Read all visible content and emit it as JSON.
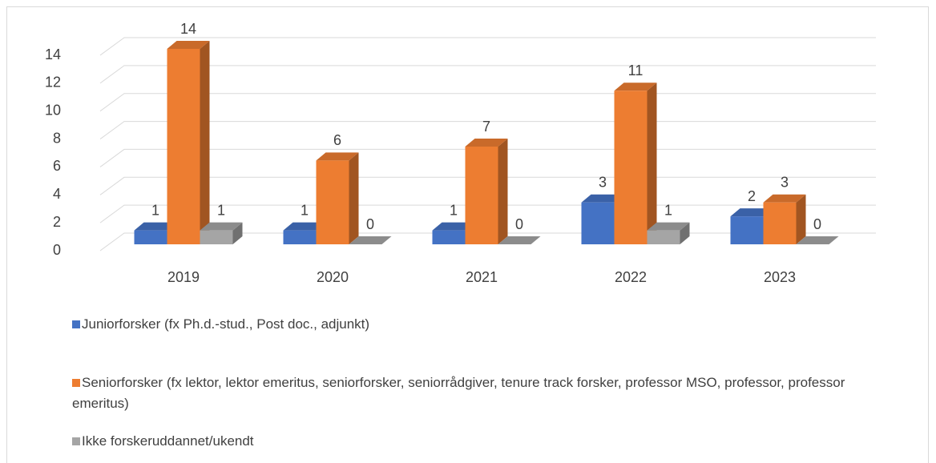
{
  "chart_data": {
    "type": "bar3d",
    "categories": [
      "2019",
      "2020",
      "2021",
      "2022",
      "2023"
    ],
    "series": [
      {
        "name": "Juniorforsker (fx Ph.d.-stud., Post doc., adjunkt)",
        "color": "#4472c4",
        "values": [
          1,
          1,
          1,
          3,
          2
        ]
      },
      {
        "name": "Seniorforsker (fx lektor, lektor emeritus, seniorforsker, seniorrådgiver, tenure track forsker, professor MSO, professor, professor emeritus)",
        "color": "#ed7d31",
        "values": [
          14,
          6,
          7,
          11,
          3
        ]
      },
      {
        "name": "Ikke forskeruddannet/ukendt",
        "color": "#a5a5a5",
        "values": [
          1,
          0,
          0,
          1,
          0
        ]
      }
    ],
    "ylim": [
      0,
      14
    ],
    "yticks": [
      0,
      2,
      4,
      6,
      8,
      10,
      12,
      14
    ],
    "grid": true,
    "legend": "bottom"
  }
}
